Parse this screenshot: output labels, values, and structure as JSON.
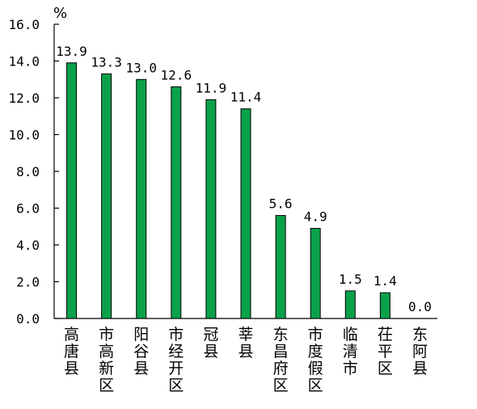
{
  "chart_data": {
    "type": "bar",
    "unit": "%",
    "categories": [
      "高唐县",
      "市高新区",
      "阳谷县",
      "市经开区",
      "冠县",
      "莘县",
      "东昌府区",
      "市度假区",
      "临清市",
      "茌平区",
      "东阿县"
    ],
    "values": [
      13.9,
      13.3,
      13.0,
      12.6,
      11.9,
      11.4,
      5.6,
      4.9,
      1.5,
      1.4,
      0.0
    ],
    "value_labels": [
      "13.9",
      "13.3",
      "13.0",
      "12.6",
      "11.9",
      "11.4",
      "5.6",
      "4.9",
      "1.5",
      "1.4",
      "0.0"
    ],
    "ylim": [
      0,
      16
    ],
    "y_ticks": [
      0,
      2,
      4,
      6,
      8,
      10,
      12,
      14,
      16
    ],
    "y_tick_labels": [
      "0.0",
      "2.0",
      "4.0",
      "6.0",
      "8.0",
      "10.0",
      "12.0",
      "14.0",
      "16.0"
    ],
    "bar_color": "#0aa14a",
    "bar_edge_color": "#000000",
    "grid": false,
    "legend": "none"
  }
}
